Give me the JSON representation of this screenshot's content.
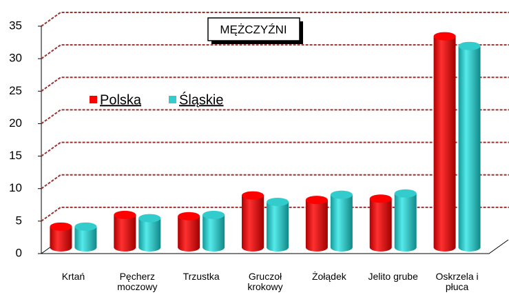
{
  "chart_data": {
    "type": "bar3d",
    "title": "MĘŻCZYŹNI",
    "categories": [
      "Krtań",
      "Pęcherz moczowy",
      "Trzustka",
      "Gruczoł krokowy",
      "Żołądek",
      "Jelito grube",
      "Oskrzela i płuca"
    ],
    "series": [
      {
        "name": "Polska",
        "color": "#ff0000",
        "values": [
          3.2,
          5.0,
          4.8,
          8.0,
          7.3,
          7.5,
          32.5
        ]
      },
      {
        "name": "Śląskie",
        "color": "#33cccc",
        "values": [
          3.2,
          4.5,
          5.0,
          7.0,
          8.1,
          8.3,
          31.0
        ]
      }
    ],
    "ylim": [
      0,
      35
    ],
    "yticks": [
      0,
      5,
      10,
      15,
      20,
      25,
      30,
      35
    ],
    "grid": true
  }
}
